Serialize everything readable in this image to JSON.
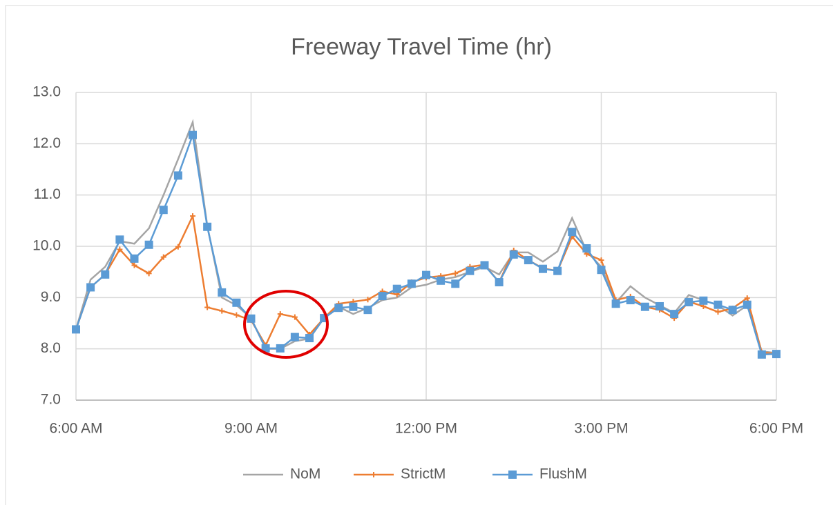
{
  "chart_data": {
    "type": "line",
    "title": "Freeway Travel Time (hr)",
    "x": [
      6,
      6.25,
      6.5,
      6.75,
      7,
      7.25,
      7.5,
      7.75,
      8,
      8.25,
      8.5,
      8.75,
      9,
      9.25,
      9.5,
      9.75,
      10,
      10.25,
      10.5,
      10.75,
      11,
      11.25,
      11.5,
      11.75,
      12,
      12.25,
      12.5,
      12.75,
      13,
      13.25,
      13.5,
      13.75,
      14,
      14.25,
      14.5,
      14.75,
      15,
      15.25,
      15.5,
      15.75,
      16,
      16.25,
      16.5,
      16.75,
      17,
      17.25,
      17.5,
      17.75,
      18
    ],
    "series": [
      {
        "name": "NoM",
        "color": "#a5a5a5",
        "marker": "none",
        "values": [
          8.38,
          9.35,
          9.6,
          10.1,
          10.05,
          10.35,
          11.0,
          11.7,
          12.42,
          10.4,
          9.0,
          8.85,
          8.6,
          8.0,
          8.0,
          8.15,
          8.2,
          8.6,
          8.82,
          8.68,
          8.8,
          8.95,
          9.0,
          9.2,
          9.25,
          9.35,
          9.4,
          9.5,
          9.6,
          9.45,
          9.88,
          9.88,
          9.7,
          9.9,
          10.55,
          9.9,
          9.6,
          8.9,
          9.22,
          9.0,
          8.85,
          8.7,
          9.05,
          8.95,
          8.85,
          8.65,
          8.85,
          7.95,
          7.92
        ]
      },
      {
        "name": "StrictM",
        "color": "#ed7d31",
        "marker": "plus",
        "values": [
          8.38,
          9.2,
          9.45,
          9.94,
          9.63,
          9.47,
          9.79,
          9.99,
          10.59,
          8.81,
          8.74,
          8.66,
          8.56,
          8.07,
          8.68,
          8.62,
          8.28,
          8.6,
          8.88,
          8.92,
          8.96,
          9.12,
          9.06,
          9.3,
          9.39,
          9.42,
          9.47,
          9.6,
          9.64,
          9.3,
          9.92,
          9.73,
          9.57,
          9.52,
          10.19,
          9.85,
          9.73,
          8.95,
          9.02,
          8.82,
          8.76,
          8.6,
          8.92,
          8.83,
          8.72,
          8.79,
          8.99,
          7.93,
          7.9
        ]
      },
      {
        "name": "FlushM",
        "color": "#5b9bd5",
        "marker": "square",
        "values": [
          8.38,
          9.2,
          9.45,
          10.13,
          9.76,
          10.03,
          10.71,
          11.38,
          12.17,
          10.38,
          9.1,
          8.9,
          8.59,
          8.01,
          8.01,
          8.23,
          8.21,
          8.6,
          8.8,
          8.82,
          8.76,
          9.03,
          9.17,
          9.27,
          9.44,
          9.33,
          9.27,
          9.52,
          9.63,
          9.3,
          9.84,
          9.73,
          9.56,
          9.52,
          10.28,
          9.96,
          9.54,
          8.88,
          8.95,
          8.82,
          8.83,
          8.68,
          8.91,
          8.94,
          8.86,
          8.76,
          8.86,
          7.89,
          7.9
        ]
      }
    ],
    "xlim": [
      6,
      18
    ],
    "xticks": [
      {
        "value": 6,
        "label": "6:00 AM"
      },
      {
        "value": 9,
        "label": "9:00 AM"
      },
      {
        "value": 12,
        "label": "12:00 PM"
      },
      {
        "value": 15,
        "label": "3:00 PM"
      },
      {
        "value": 18,
        "label": "6:00 PM"
      }
    ],
    "ylim": [
      7,
      13
    ],
    "yticks": [
      {
        "value": 7,
        "label": "7.0"
      },
      {
        "value": 8,
        "label": "8.0"
      },
      {
        "value": 9,
        "label": "9.0"
      },
      {
        "value": 10,
        "label": "10.0"
      },
      {
        "value": 11,
        "label": "11.0"
      },
      {
        "value": 12,
        "label": "12.0"
      },
      {
        "value": 13,
        "label": "13.0"
      }
    ],
    "grid": true,
    "legend": "bottom"
  }
}
